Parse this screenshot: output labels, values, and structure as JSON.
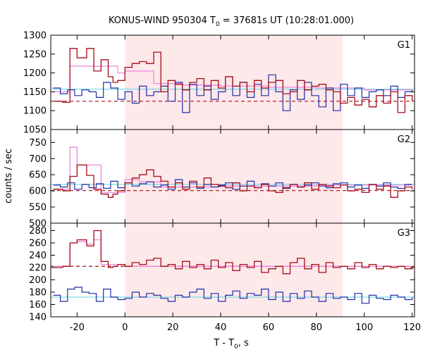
{
  "chart_data": {
    "type": "line",
    "title_prefix": "KONUS-WIND 950304 T",
    "title_sub": "0",
    "title_suffix": " = 37681s UT (10:28:01.000)",
    "xlabel_prefix": "T - T",
    "xlabel_sub": "0",
    "xlabel_suffix": ", s",
    "ylabel": "counts / sec",
    "xlim": [
      -31,
      121
    ],
    "xticks": [
      -20,
      0,
      20,
      40,
      60,
      80,
      100,
      120
    ],
    "highlight_interval": [
      0,
      91
    ],
    "colors": {
      "dark_red": "#a50d16",
      "blue": "#1f2ea8",
      "pink": "#ee88dd",
      "cyan": "#7fd9e8",
      "highlight": "#fde8ea"
    },
    "panels": [
      {
        "label": "G1",
        "ylim": [
          1050,
          1300
        ],
        "yticks": [
          1050,
          1100,
          1150,
          1200,
          1250,
          1300
        ],
        "red_background": 1125,
        "blue_background": 1157,
        "red_step": {
          "x": [
            -30,
            -26,
            -23,
            -20,
            -16,
            -13,
            -10,
            -7,
            -5,
            -3,
            0,
            3,
            6,
            9,
            12,
            15,
            18,
            21,
            24,
            27,
            30,
            33,
            36,
            39,
            42,
            45,
            48,
            51,
            54,
            57,
            60,
            63,
            66,
            69,
            72,
            75,
            78,
            81,
            84,
            87,
            90,
            93,
            96,
            99,
            102,
            105,
            108,
            111,
            114,
            117,
            120
          ],
          "y": [
            1125,
            1122,
            1265,
            1240,
            1265,
            1205,
            1235,
            1190,
            1175,
            1180,
            1215,
            1225,
            1230,
            1225,
            1255,
            1150,
            1180,
            1170,
            1155,
            1175,
            1185,
            1155,
            1180,
            1160,
            1190,
            1165,
            1175,
            1150,
            1180,
            1160,
            1175,
            1180,
            1145,
            1150,
            1180,
            1155,
            1165,
            1170,
            1155,
            1150,
            1120,
            1135,
            1115,
            1130,
            1110,
            1140,
            1120,
            1150,
            1095,
            1140,
            1125
          ]
        },
        "blue_step": {
          "x": [
            -30,
            -27,
            -24,
            -21,
            -18,
            -15,
            -12,
            -9,
            -6,
            -3,
            0,
            3,
            6,
            9,
            12,
            15,
            18,
            21,
            24,
            27,
            30,
            33,
            36,
            39,
            42,
            45,
            48,
            51,
            54,
            57,
            60,
            63,
            66,
            69,
            72,
            75,
            78,
            81,
            84,
            87,
            90,
            93,
            96,
            99,
            102,
            105,
            108,
            111,
            114,
            117,
            120
          ],
          "y": [
            1160,
            1145,
            1155,
            1140,
            1155,
            1150,
            1135,
            1175,
            1160,
            1130,
            1150,
            1120,
            1165,
            1140,
            1150,
            1165,
            1125,
            1175,
            1095,
            1170,
            1140,
            1165,
            1130,
            1150,
            1190,
            1140,
            1175,
            1135,
            1170,
            1140,
            1195,
            1150,
            1100,
            1155,
            1130,
            1175,
            1140,
            1110,
            1160,
            1100,
            1170,
            1140,
            1160,
            1135,
            1150,
            1155,
            1140,
            1165,
            1135,
            1150,
            1155
          ]
        },
        "pink_step": {
          "x": [
            -30,
            -23,
            -13,
            -3,
            0,
            12,
            24,
            40,
            60,
            80,
            100,
            120
          ],
          "y": [
            1150,
            1218,
            1218,
            1200,
            1205,
            1172,
            1168,
            1165,
            1162,
            1160,
            1155,
            1155
          ]
        }
      },
      {
        "label": "G2",
        "ylim": [
          500,
          790
        ],
        "yticks": [
          500,
          550,
          600,
          650,
          700,
          750
        ],
        "red_background": 601,
        "blue_background": 620,
        "red_step": {
          "x": [
            -30,
            -26,
            -23,
            -20,
            -16,
            -13,
            -10,
            -7,
            -5,
            -3,
            0,
            3,
            6,
            9,
            12,
            15,
            18,
            21,
            24,
            27,
            30,
            33,
            36,
            39,
            42,
            45,
            48,
            51,
            54,
            57,
            60,
            63,
            66,
            69,
            72,
            75,
            78,
            81,
            84,
            87,
            90,
            93,
            96,
            99,
            102,
            105,
            108,
            111,
            114,
            117,
            120
          ],
          "y": [
            605,
            600,
            645,
            680,
            648,
            605,
            590,
            580,
            590,
            600,
            625,
            640,
            650,
            665,
            645,
            630,
            612,
            625,
            605,
            630,
            612,
            640,
            620,
            615,
            610,
            625,
            600,
            615,
            610,
            620,
            600,
            595,
            610,
            620,
            612,
            625,
            605,
            620,
            615,
            610,
            618,
            600,
            605,
            595,
            620,
            605,
            615,
            580,
            600,
            612,
            605
          ]
        },
        "blue_step": {
          "x": [
            -30,
            -27,
            -24,
            -21,
            -18,
            -15,
            -12,
            -9,
            -6,
            -3,
            0,
            3,
            6,
            9,
            12,
            15,
            18,
            21,
            24,
            27,
            30,
            33,
            36,
            39,
            42,
            45,
            48,
            51,
            54,
            57,
            60,
            63,
            66,
            69,
            72,
            75,
            78,
            81,
            84,
            87,
            90,
            93,
            96,
            99,
            102,
            105,
            108,
            111,
            114,
            117,
            120
          ],
          "y": [
            618,
            612,
            625,
            605,
            620,
            610,
            622,
            608,
            630,
            610,
            625,
            615,
            622,
            628,
            612,
            618,
            605,
            635,
            612,
            625,
            608,
            620,
            612,
            618,
            625,
            605,
            615,
            630,
            610,
            622,
            615,
            625,
            608,
            620,
            612,
            618,
            625,
            615,
            610,
            622,
            625,
            612,
            618,
            608,
            620,
            615,
            625,
            612,
            608,
            620,
            620
          ]
        },
        "pink_step": {
          "x": [
            -30,
            -23,
            -20,
            -16,
            -10,
            0,
            6,
            15,
            40,
            80,
            120
          ],
          "y": [
            605,
            735,
            680,
            680,
            595,
            635,
            628,
            612,
            615,
            618,
            618
          ]
        }
      },
      {
        "label": "G3",
        "ylim": [
          140,
          292
        ],
        "yticks": [
          140,
          160,
          180,
          200,
          220,
          240,
          260,
          280
        ],
        "red_background": 222,
        "blue_background": 172,
        "red_step": {
          "x": [
            -30,
            -26,
            -23,
            -20,
            -16,
            -13,
            -10,
            -7,
            -5,
            -3,
            0,
            3,
            6,
            9,
            12,
            15,
            18,
            21,
            24,
            27,
            30,
            33,
            36,
            39,
            42,
            45,
            48,
            51,
            54,
            57,
            60,
            63,
            66,
            69,
            72,
            75,
            78,
            81,
            84,
            87,
            90,
            93,
            96,
            99,
            102,
            105,
            108,
            111,
            114,
            117,
            120
          ],
          "y": [
            220,
            222,
            260,
            265,
            255,
            280,
            230,
            220,
            222,
            225,
            222,
            228,
            225,
            232,
            235,
            222,
            225,
            218,
            230,
            220,
            225,
            218,
            232,
            220,
            228,
            215,
            225,
            220,
            230,
            212,
            218,
            222,
            210,
            228,
            235,
            218,
            225,
            212,
            228,
            220,
            222,
            218,
            228,
            220,
            225,
            218,
            222,
            220,
            222,
            218,
            222
          ]
        },
        "blue_step": {
          "x": [
            -30,
            -27,
            -24,
            -21,
            -18,
            -15,
            -12,
            -9,
            -6,
            -3,
            0,
            3,
            6,
            9,
            12,
            15,
            18,
            21,
            24,
            27,
            30,
            33,
            36,
            39,
            42,
            45,
            48,
            51,
            54,
            57,
            60,
            63,
            66,
            69,
            72,
            75,
            78,
            81,
            84,
            87,
            90,
            93,
            96,
            99,
            102,
            105,
            108,
            111,
            114,
            117,
            120
          ],
          "y": [
            175,
            165,
            185,
            188,
            180,
            178,
            165,
            185,
            172,
            168,
            170,
            180,
            172,
            178,
            175,
            170,
            165,
            175,
            172,
            180,
            185,
            170,
            178,
            165,
            175,
            182,
            170,
            178,
            175,
            185,
            168,
            180,
            165,
            178,
            170,
            182,
            172,
            165,
            178,
            170,
            172,
            168,
            178,
            162,
            175,
            170,
            168,
            175,
            172,
            168,
            172
          ]
        },
        "pink_step": {
          "x": [
            -30,
            -23,
            -20,
            -16,
            -13,
            -10,
            0,
            40,
            80,
            120
          ],
          "y": [
            222,
            260,
            262,
            258,
            265,
            225,
            222,
            222,
            222,
            222
          ]
        }
      }
    ]
  }
}
